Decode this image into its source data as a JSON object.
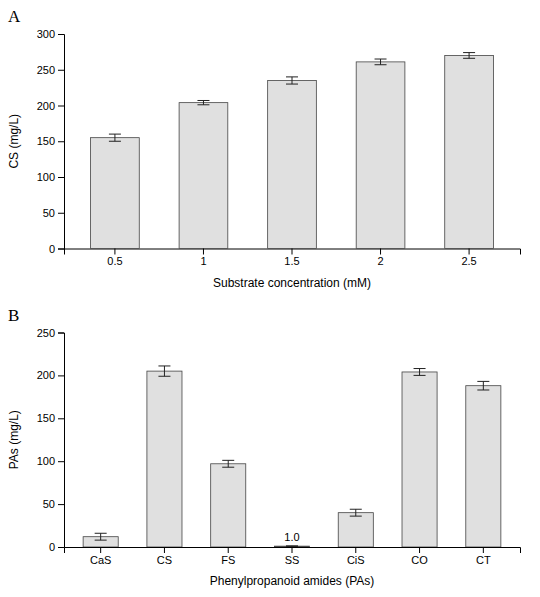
{
  "chart_data": [
    {
      "type": "bar",
      "title": "A",
      "categories": [
        "0.5",
        "1",
        "1.5",
        "2",
        "2.5"
      ],
      "values": [
        155,
        204,
        235,
        261,
        270
      ],
      "errors": [
        5,
        3,
        5,
        4,
        4
      ],
      "x_label": "Substrate concentration (mM)",
      "y_label": "CS (mg/L)",
      "ylim": [
        0,
        300
      ],
      "yticks": [
        0,
        50,
        100,
        150,
        200,
        250,
        300
      ],
      "color": "#e0e0e0",
      "grid": false
    },
    {
      "type": "bar",
      "title": "B",
      "categories": [
        "CaS",
        "CS",
        "FS",
        "SS",
        "CiS",
        "CO",
        "CT"
      ],
      "values": [
        12,
        205,
        97,
        1.0,
        40,
        204,
        188
      ],
      "errors": [
        4,
        6,
        4,
        0.3,
        4,
        4,
        5
      ],
      "x_label": "Phenylpropanoid amides (PAs)",
      "y_label": "PAs (mg/L)",
      "ylim": [
        0,
        250
      ],
      "yticks": [
        0,
        50,
        100,
        150,
        200,
        250
      ],
      "color": "#e0e0e0",
      "grid": false,
      "annotations": [
        {
          "text": "1.0",
          "category": "SS"
        }
      ]
    }
  ]
}
